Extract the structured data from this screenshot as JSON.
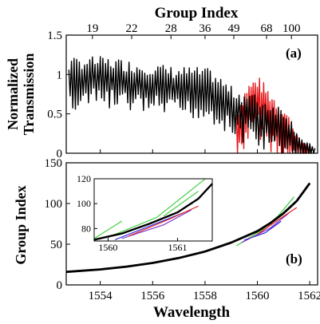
{
  "chart_data": [
    {
      "panel_label": "(a)",
      "type": "line",
      "ylabel": "Normalized\nTransmission",
      "top_axis_label": "Group Index",
      "top_ticks": [
        "19",
        "22",
        "28",
        "36",
        "49",
        "68",
        "100"
      ],
      "top_tick_wavelengths": [
        1553.7,
        1555.2,
        1556.7,
        1558.0,
        1559.1,
        1560.35,
        1561.3
      ],
      "xlim": [
        1552.7,
        1562.3
      ],
      "ylim": [
        0,
        1.5
      ],
      "yticks": [
        "0",
        "0.5",
        "1",
        "1.5"
      ],
      "series": [
        {
          "color": "#000000",
          "envelope": [
            [
              1552.8,
              0.95
            ],
            [
              1553.3,
              0.97
            ],
            [
              1553.8,
              0.98
            ],
            [
              1554.3,
              0.97
            ],
            [
              1554.8,
              0.95
            ],
            [
              1555.3,
              0.92
            ],
            [
              1555.8,
              0.9
            ],
            [
              1556.3,
              0.88
            ],
            [
              1556.8,
              0.85
            ],
            [
              1557.3,
              0.85
            ],
            [
              1557.8,
              0.84
            ],
            [
              1558.2,
              0.82
            ],
            [
              1558.6,
              0.72
            ],
            [
              1559.0,
              0.6
            ],
            [
              1559.4,
              0.55
            ],
            [
              1559.8,
              0.52
            ],
            [
              1560.2,
              0.45
            ],
            [
              1560.6,
              0.4
            ],
            [
              1561.0,
              0.35
            ],
            [
              1561.4,
              0.2
            ],
            [
              1561.8,
              0.06
            ],
            [
              1562.2,
              0.03
            ]
          ],
          "period_nm": 0.1,
          "amplitude": 0.3
        },
        {
          "color": "#e41a1c",
          "envelope": [
            [
              1559.2,
              0.3
            ],
            [
              1559.6,
              0.6
            ],
            [
              1560.0,
              0.7
            ],
            [
              1560.4,
              0.55
            ],
            [
              1560.8,
              0.4
            ],
            [
              1561.2,
              0.25
            ],
            [
              1561.6,
              0.08
            ],
            [
              1562.0,
              0.03
            ]
          ],
          "period_nm": 0.08,
          "amplitude": 0.35
        }
      ]
    },
    {
      "panel_label": "(b)",
      "type": "line",
      "xlabel": "Wavelength",
      "ylabel": "Group Index",
      "xlim": [
        1552.7,
        1562.3
      ],
      "ylim": [
        0,
        150
      ],
      "xticks": [
        "1554",
        "1556",
        "1558",
        "1560",
        "1562"
      ],
      "yticks": [
        "0",
        "50",
        "100",
        "150"
      ],
      "series": [
        {
          "color": "#000000",
          "points": [
            [
              1552.7,
              16
            ],
            [
              1554.0,
              19
            ],
            [
              1555.0,
              22.5
            ],
            [
              1556.0,
              27
            ],
            [
              1557.0,
              33
            ],
            [
              1558.0,
              41
            ],
            [
              1559.0,
              52
            ],
            [
              1560.0,
              66
            ],
            [
              1560.5,
              76
            ],
            [
              1561.0,
              88
            ],
            [
              1561.5,
              103
            ],
            [
              1562.0,
              125
            ]
          ]
        },
        {
          "color": "#33cc33",
          "points": [
            [
              1559.2,
              48
            ],
            [
              1560.2,
              68
            ],
            [
              1560.8,
              85
            ],
            [
              1561.4,
              108
            ]
          ]
        },
        {
          "color": "#2020e0",
          "points": [
            [
              1559.5,
              55
            ],
            [
              1560.3,
              64
            ],
            [
              1560.9,
              78
            ]
          ]
        },
        {
          "color": "#7a2fc8",
          "points": [
            [
              1559.4,
              52
            ],
            [
              1560.5,
              70
            ],
            [
              1561.2,
              88
            ]
          ]
        },
        {
          "color": "#e41a1c",
          "points": [
            [
              1560.0,
              62
            ],
            [
              1560.8,
              80
            ],
            [
              1561.5,
              95
            ]
          ]
        }
      ],
      "inset": {
        "xlim": [
          1559.8,
          1561.5
        ],
        "ylim": [
          70,
          120
        ],
        "xticks": [
          "1560",
          "1561"
        ],
        "yticks": [
          "80",
          "100",
          "120"
        ],
        "series": [
          {
            "color": "#000000",
            "points": [
              [
                1559.8,
                71
              ],
              [
                1560.2,
                76
              ],
              [
                1560.6,
                84
              ],
              [
                1561.0,
                93
              ],
              [
                1561.3,
                104
              ],
              [
                1561.5,
                116
              ]
            ]
          },
          {
            "color": "#33cc33",
            "points": [
              [
                1559.8,
                72
              ],
              [
                1560.2,
                86
              ]
            ]
          },
          {
            "color": "#33cc33",
            "points": [
              [
                1560.0,
                73
              ],
              [
                1560.7,
                89
              ],
              [
                1561.4,
                120
              ]
            ]
          },
          {
            "color": "#33cc33",
            "points": [
              [
                1560.8,
                90
              ],
              [
                1561.3,
                110
              ]
            ]
          },
          {
            "color": "#2020e0",
            "points": [
              [
                1560.1,
                71
              ],
              [
                1560.6,
                82
              ],
              [
                1561.1,
                93
              ]
            ]
          },
          {
            "color": "#7a2fc8",
            "points": [
              [
                1560.2,
                72
              ],
              [
                1560.8,
                83
              ],
              [
                1561.2,
                95
              ]
            ]
          },
          {
            "color": "#e41a1c",
            "points": [
              [
                1560.3,
                74
              ],
              [
                1560.9,
                88
              ],
              [
                1561.3,
                98
              ]
            ]
          }
        ]
      }
    }
  ]
}
